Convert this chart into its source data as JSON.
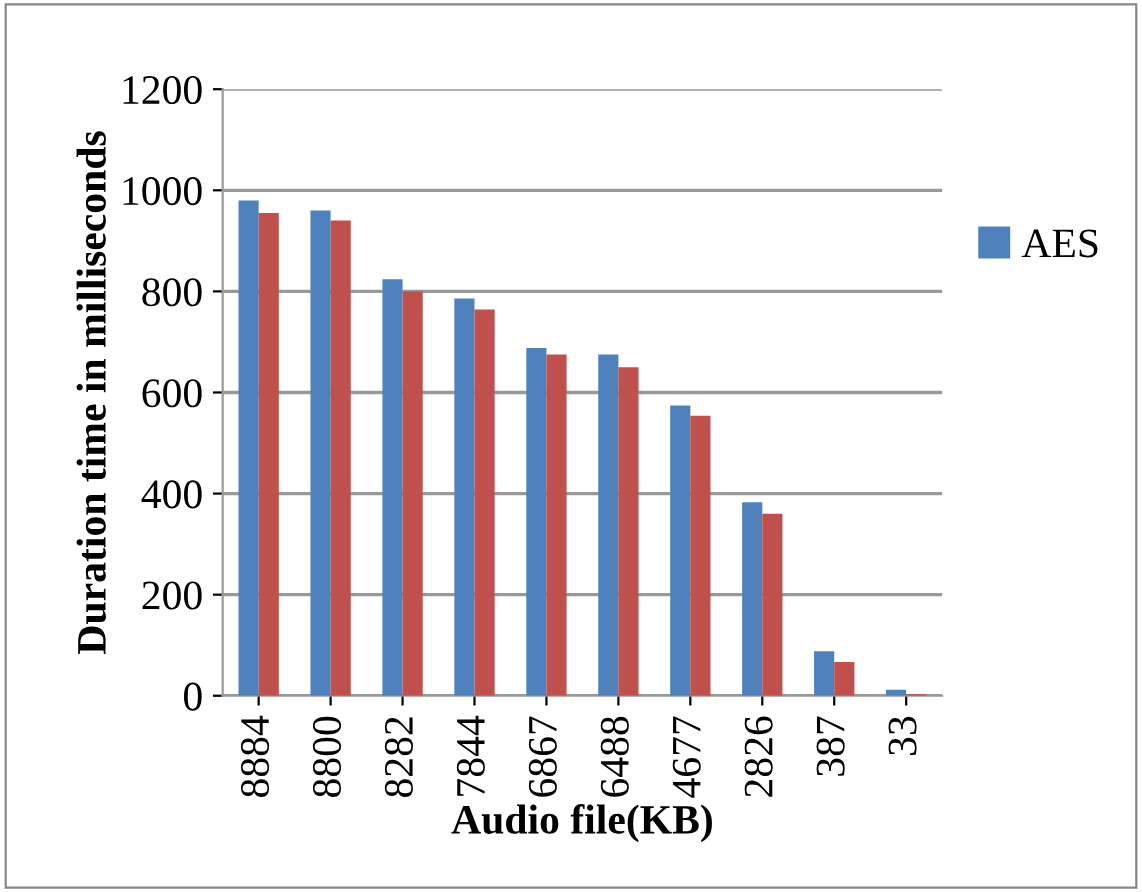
{
  "chart_data": {
    "type": "bar",
    "xlabel": "Audio file(KB)",
    "ylabel": "Duration time in milliseconds",
    "categories": [
      "8884",
      "8800",
      "8282",
      "7844",
      "6867",
      "6488",
      "4677",
      "2826",
      "387",
      "33"
    ],
    "series": [
      {
        "name": "AES",
        "color": "#4f81bd",
        "values": [
          980,
          960,
          824,
          786,
          688,
          675,
          574,
          383,
          88,
          12
        ]
      },
      {
        "color": "#c0504d",
        "values": [
          955,
          940,
          800,
          764,
          675,
          650,
          554,
          360,
          67,
          3
        ]
      }
    ],
    "ylim": [
      0,
      1200
    ],
    "yticks": [
      0,
      200,
      400,
      600,
      800,
      1000,
      1200
    ],
    "grid": "y",
    "legend": "right"
  }
}
